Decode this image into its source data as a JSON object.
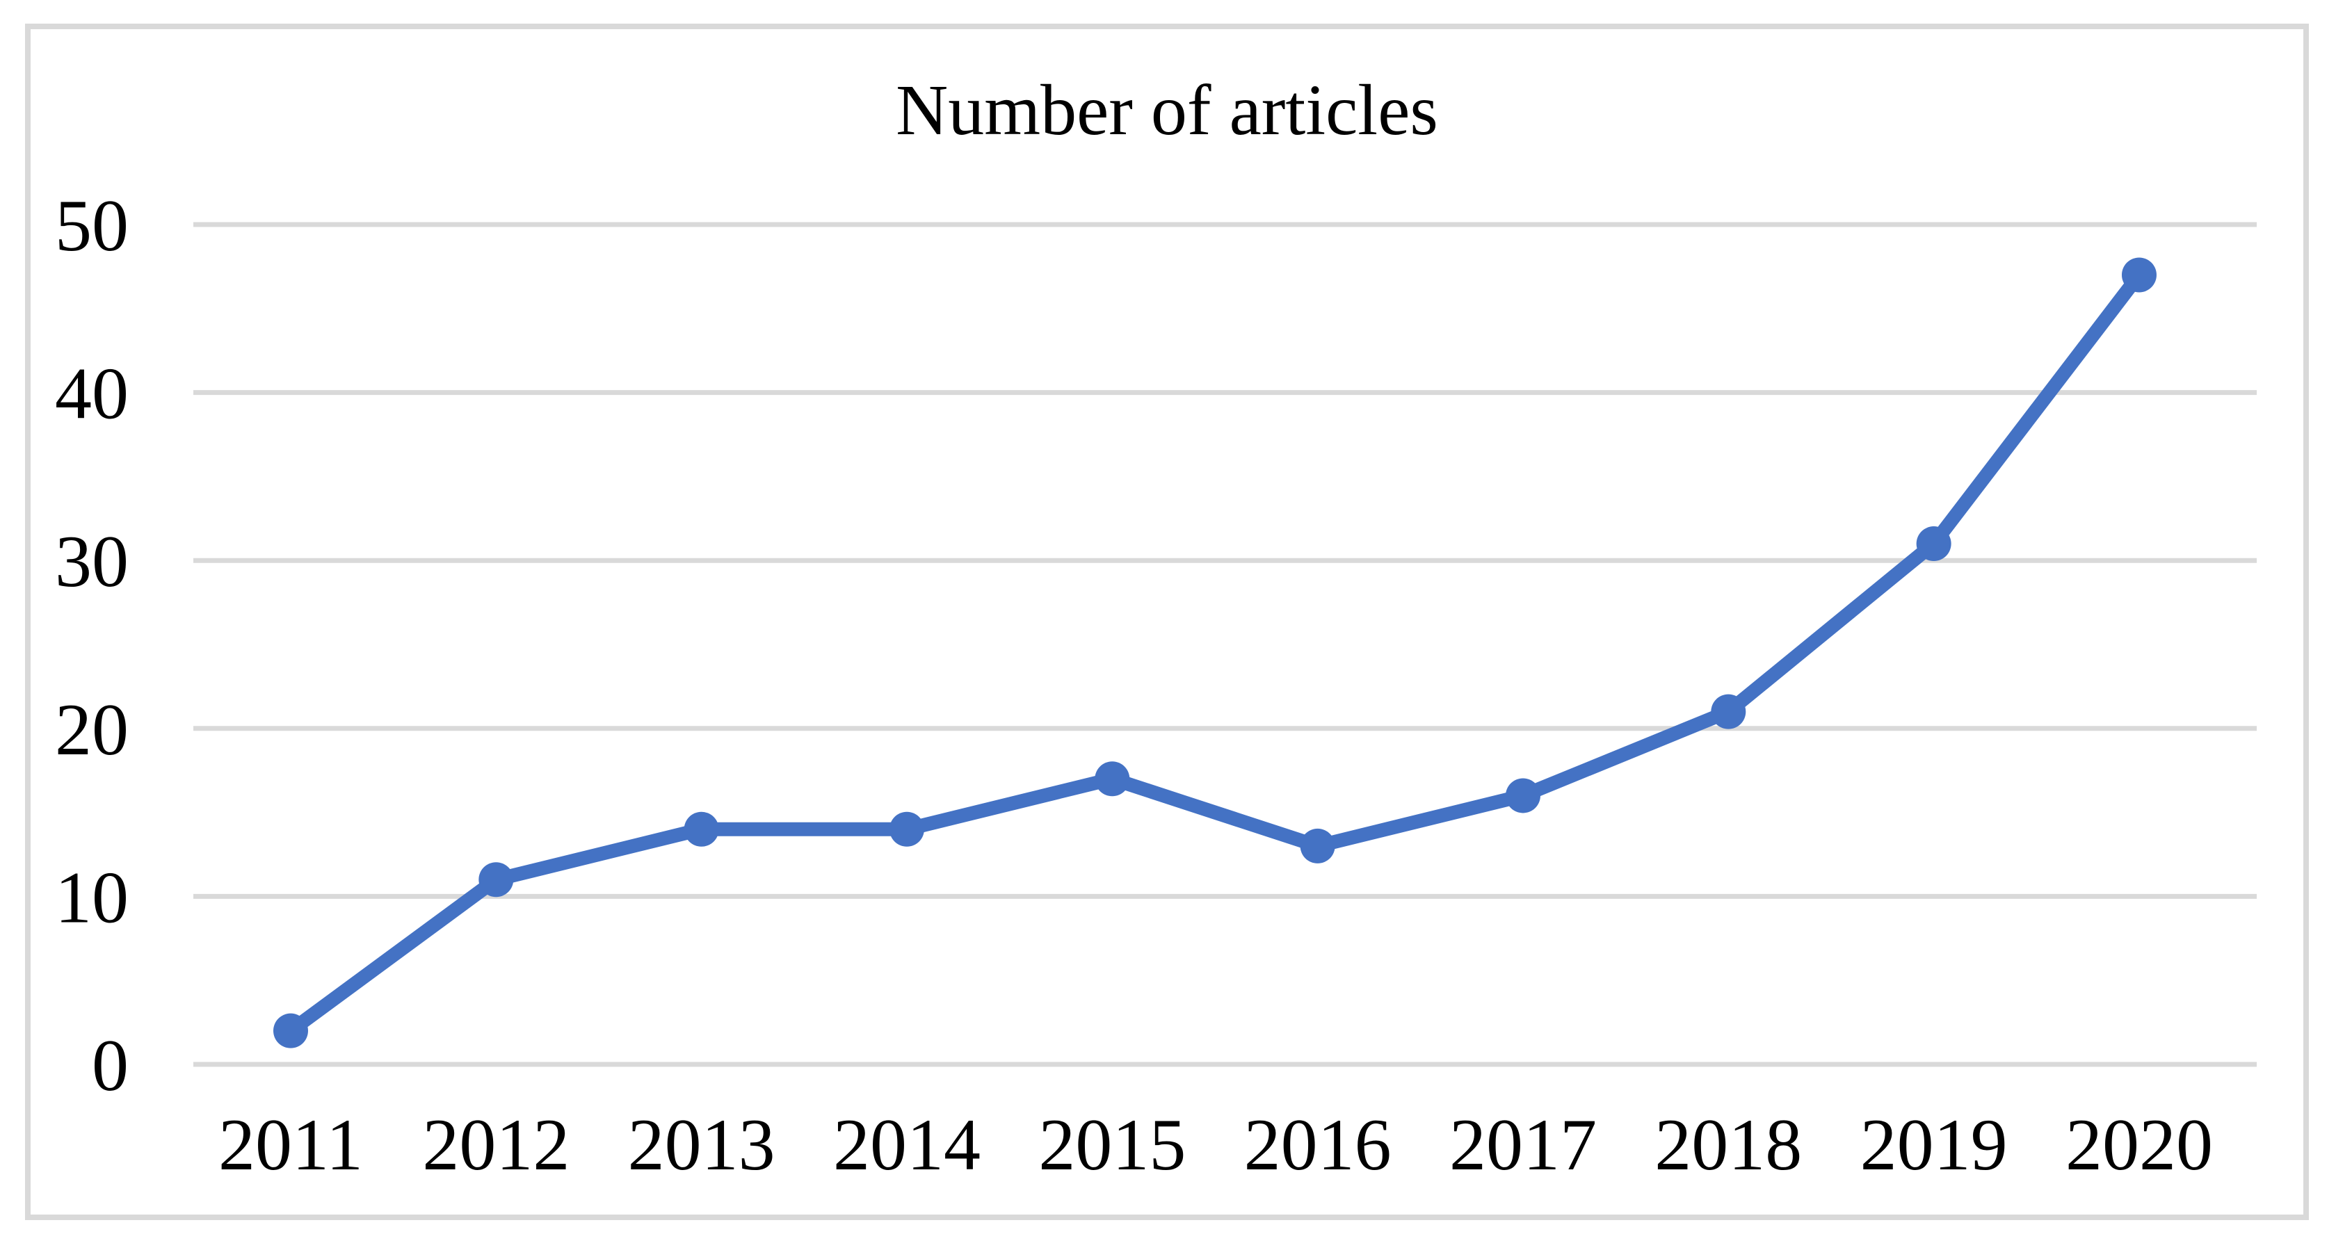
{
  "chart_data": {
    "type": "line",
    "title": "Number of articles",
    "categories": [
      "2011",
      "2012",
      "2013",
      "2014",
      "2015",
      "2016",
      "2017",
      "2018",
      "2019",
      "2020"
    ],
    "series": [
      {
        "name": "Number of articles",
        "values": [
          2,
          11,
          14,
          14,
          17,
          13,
          16,
          21,
          31,
          47
        ]
      }
    ],
    "xlabel": "",
    "ylabel": "",
    "ylim": [
      0,
      50
    ],
    "yticks": [
      0,
      10,
      20,
      30,
      40,
      50
    ],
    "grid": "horizontal",
    "legend_position": "none",
    "marker": "circle",
    "colors": {
      "line": "#4472C4",
      "marker": "#4472C4",
      "gridline": "#D9D9D9",
      "frame_border": "#D9D9D9",
      "text": "#000000",
      "background": "#FFFFFF"
    }
  }
}
